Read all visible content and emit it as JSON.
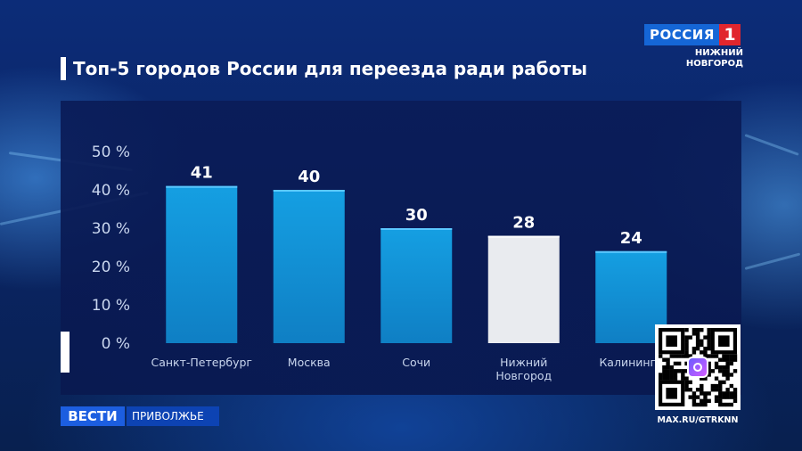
{
  "channel": {
    "logo_text": "РОССИЯ",
    "logo_number": "1",
    "region_line1": "НИЖНИЙ",
    "region_line2": "НОВГОРОД"
  },
  "news": {
    "program": "ВЕСТИ",
    "region": "ПРИВОЛЖЬЕ"
  },
  "qr": {
    "url": "MAX.RU/GTRKNN"
  },
  "chart_data": {
    "type": "bar",
    "title": "Топ-5 городов России для переезда ради работы",
    "categories": [
      "Санкт-Петербург",
      "Москва",
      "Сочи",
      "Нижний Новгород",
      "Калининград"
    ],
    "category_labels": [
      [
        "Санкт-Петербург"
      ],
      [
        "Москва"
      ],
      [
        "Сочи"
      ],
      [
        "Нижний",
        "Новгород"
      ],
      [
        "Калинингр"
      ]
    ],
    "values": [
      41,
      40,
      30,
      28,
      24
    ],
    "value_labels": [
      "41",
      "40",
      "30",
      "28",
      "24"
    ],
    "highlight_index": 3,
    "y_ticks": [
      "50 %",
      "40 %",
      "30 %",
      "20 %",
      "10 %",
      "0 %"
    ],
    "y_tick_values": [
      50,
      40,
      30,
      20,
      10,
      0
    ],
    "ylim": [
      0,
      50
    ],
    "xlabel": "",
    "ylabel": "",
    "colors": {
      "bar": "#159fe2",
      "bar_dark": "#0f7fc4",
      "highlight": "#e9ebef",
      "label": "#ffffff",
      "tick": "#c9d6ee"
    }
  }
}
